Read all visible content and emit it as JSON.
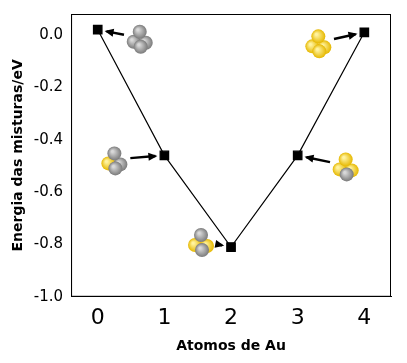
{
  "chart_data": {
    "type": "line",
    "x_label": "Atomos de Au",
    "y_label": "Energia das misturas/eV",
    "x": [
      0,
      1,
      2,
      3,
      4
    ],
    "values": [
      0.02,
      -0.46,
      -0.81,
      -0.46,
      0.01
    ],
    "color": "#000000",
    "marker": "square",
    "line_style": "solid",
    "xlim": [
      -0.4,
      4.4
    ],
    "xticks": [
      0,
      1,
      2,
      3,
      4
    ],
    "ylim": [
      -1.0,
      0.08
    ],
    "yticks": [
      {
        "value": 0,
        "label": "0.0"
      },
      -0.2,
      -0.4,
      -0.6,
      -0.8,
      {
        "value": -1,
        "label": "-1.0"
      }
    ],
    "grid": false
  }
}
